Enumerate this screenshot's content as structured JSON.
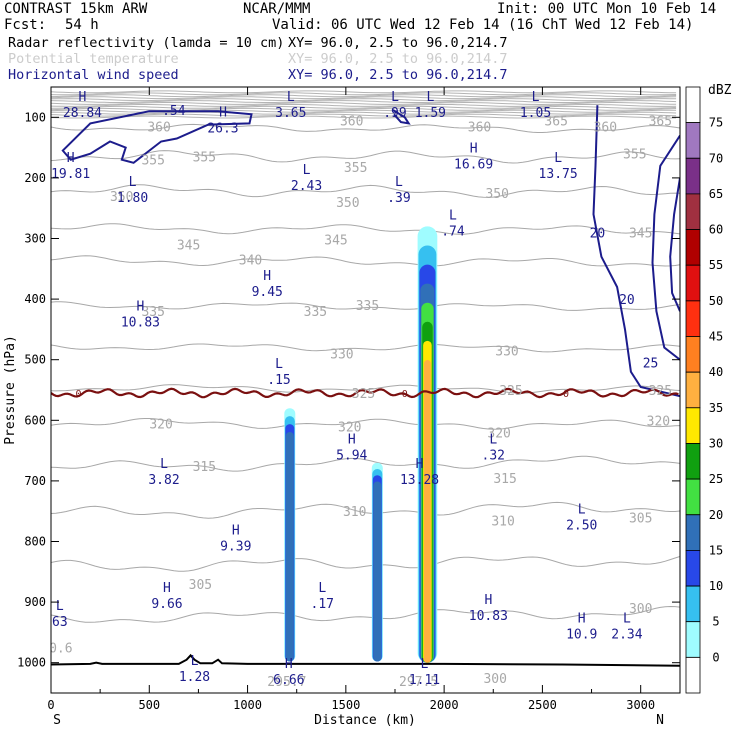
{
  "header": {
    "model": "CONTRAST 15km ARW",
    "org": "NCAR/MMM",
    "init": "Init: 00 UTC Mon 10 Feb 14",
    "fcst_label": "Fcst:",
    "fcst_value": "54 h",
    "valid": "Valid: 06 UTC Wed 12 Feb 14 (16 ChT Wed 12 Feb 14)"
  },
  "fields": [
    {
      "name": "Radar reflectivity (lamda = 10 cm)",
      "xy": "XY=  96.0,  2.5 to  96.0,214.7",
      "color": "#000000"
    },
    {
      "name": "Potential temperature",
      "xy": "XY=  96.0,  2.5 to  96.0,214.7",
      "color": "#cccccc"
    },
    {
      "name": "Horizontal wind speed",
      "xy": "XY=  96.0,  2.5 to  96.0,214.7",
      "color": "#1c1c8c"
    }
  ],
  "colors": {
    "theta": "#a8a8a8",
    "wind": "#1c1c8c",
    "zero_isotherm": "#7a1010",
    "terrain": "#000000",
    "wind_label": "#1c1c8c"
  },
  "chart_data": {
    "type": "heatmap",
    "xlabel": "Distance (km)",
    "ylabel": "Pressure (hPa)",
    "xlim": [
      0,
      3200
    ],
    "ylim": [
      1050,
      50
    ],
    "x_ticks": [
      "0",
      "500",
      "1000",
      "1500",
      "2000",
      "2500",
      "3000"
    ],
    "x_tick_values": [
      0,
      500,
      1000,
      1500,
      2000,
      2500,
      3000
    ],
    "y_ticks": [
      "100",
      "200",
      "300",
      "400",
      "500",
      "600",
      "700",
      "800",
      "900",
      "1000"
    ],
    "y_tick_values": [
      100,
      200,
      300,
      400,
      500,
      600,
      700,
      800,
      900,
      1000
    ],
    "x_ends": {
      "left": "S",
      "right": "N"
    },
    "colorbar": {
      "unit": "dBZ",
      "levels": [
        "0",
        "5",
        "10",
        "15",
        "20",
        "25",
        "30",
        "35",
        "40",
        "45",
        "50",
        "55",
        "60",
        "65",
        "70",
        "75"
      ],
      "colors": [
        "#ffffff",
        "#9ffcff",
        "#36c0f0",
        "#2848e8",
        "#3070b8",
        "#42e042",
        "#10a010",
        "#ffe800",
        "#ffb040",
        "#ff8020",
        "#ff3010",
        "#e01010",
        "#b00000",
        "#a03040",
        "#7a3088",
        "#a078c0",
        "#ffffff"
      ]
    },
    "reflectivity_cells": [
      {
        "x_center": 1215,
        "p_top": 580,
        "p_bottom": 1000,
        "max_dbz": 20
      },
      {
        "x_center": 1660,
        "p_top": 670,
        "p_bottom": 1000,
        "max_dbz": 20
      },
      {
        "x_center": 1915,
        "p_top": 280,
        "p_bottom": 1000,
        "max_dbz": 40
      }
    ],
    "zero_isotherm_label": "0",
    "zero_isotherm_p": 555,
    "theta_labels": [
      {
        "text": "360",
        "x": 550,
        "p": 115
      },
      {
        "text": "360",
        "x": 1530,
        "p": 105
      },
      {
        "text": "360",
        "x": 2180,
        "p": 115
      },
      {
        "text": "365",
        "x": 2570,
        "p": 105
      },
      {
        "text": "365",
        "x": 3100,
        "p": 105
      },
      {
        "text": "360",
        "x": 2820,
        "p": 115
      },
      {
        "text": "355",
        "x": 520,
        "p": 170
      },
      {
        "text": "355",
        "x": 780,
        "p": 165
      },
      {
        "text": "355",
        "x": 1550,
        "p": 182
      },
      {
        "text": "355",
        "x": 2970,
        "p": 160
      },
      {
        "text": "350",
        "x": 360,
        "p": 230
      },
      {
        "text": "350",
        "x": 1510,
        "p": 240
      },
      {
        "text": "350",
        "x": 2270,
        "p": 225
      },
      {
        "text": "345",
        "x": 1450,
        "p": 302
      },
      {
        "text": "345",
        "x": 3000,
        "p": 290
      },
      {
        "text": "345",
        "x": 700,
        "p": 310
      },
      {
        "text": "340",
        "x": 1015,
        "p": 335
      },
      {
        "text": "335",
        "x": 520,
        "p": 420
      },
      {
        "text": "335",
        "x": 1345,
        "p": 420
      },
      {
        "text": "335",
        "x": 1610,
        "p": 410
      },
      {
        "text": "330",
        "x": 1480,
        "p": 490
      },
      {
        "text": "330",
        "x": 2320,
        "p": 485
      },
      {
        "text": "325",
        "x": 1590,
        "p": 555
      },
      {
        "text": "325",
        "x": 2340,
        "p": 550
      },
      {
        "text": "325",
        "x": 3100,
        "p": 550
      },
      {
        "text": "320",
        "x": 560,
        "p": 605
      },
      {
        "text": "320",
        "x": 1520,
        "p": 610
      },
      {
        "text": "320",
        "x": 2280,
        "p": 620
      },
      {
        "text": "320",
        "x": 3090,
        "p": 600
      },
      {
        "text": "315",
        "x": 780,
        "p": 675
      },
      {
        "text": "315",
        "x": 2310,
        "p": 695
      },
      {
        "text": "310",
        "x": 1545,
        "p": 750
      },
      {
        "text": "310",
        "x": 2300,
        "p": 765
      },
      {
        "text": "305",
        "x": 760,
        "p": 870
      },
      {
        "text": "305",
        "x": 3000,
        "p": 760
      },
      {
        "text": "300",
        "x": 3000,
        "p": 910
      },
      {
        "text": "300",
        "x": 2260,
        "p": 1025
      },
      {
        "text": "0.6",
        "x": 50,
        "p": 975
      },
      {
        "text": "295.7",
        "x": 1200,
        "p": 1030
      },
      {
        "text": "297.5",
        "x": 1870,
        "p": 1030
      }
    ],
    "wind_labels": [
      {
        "text": ".54",
        "x": 625,
        "p": 88
      },
      {
        "text": "20",
        "x": 2780,
        "p": 290
      },
      {
        "text": "20",
        "x": 2930,
        "p": 400
      },
      {
        "text": "25",
        "x": 3050,
        "p": 505
      }
    ],
    "extrema": [
      {
        "kind": "H",
        "value": "28.84",
        "x": 160,
        "p": 80
      },
      {
        "kind": "L",
        "value": "3.65",
        "x": 1220,
        "p": 80
      },
      {
        "kind": "L",
        "value": ".99",
        "x": 1750,
        "p": 80
      },
      {
        "kind": "L",
        "value": "1.59",
        "x": 1930,
        "p": 80
      },
      {
        "kind": "L",
        "value": "1.05",
        "x": 2465,
        "p": 80
      },
      {
        "kind": "H",
        "value": "26.3",
        "x": 875,
        "p": 105
      },
      {
        "kind": "H",
        "value": "19.81",
        "x": 100,
        "p": 180
      },
      {
        "kind": "H",
        "value": "16.69",
        "x": 2150,
        "p": 165
      },
      {
        "kind": "L",
        "value": "13.75",
        "x": 2580,
        "p": 180
      },
      {
        "kind": "L",
        "value": "1.80",
        "x": 415,
        "p": 220
      },
      {
        "kind": "L",
        "value": "2.43",
        "x": 1300,
        "p": 200
      },
      {
        "kind": "L",
        "value": ".39",
        "x": 1770,
        "p": 220
      },
      {
        "kind": "L",
        "value": ".74",
        "x": 2045,
        "p": 275
      },
      {
        "kind": "H",
        "value": "9.45",
        "x": 1100,
        "p": 375
      },
      {
        "kind": "H",
        "value": "10.83",
        "x": 455,
        "p": 425
      },
      {
        "kind": "L",
        "value": ".15",
        "x": 1160,
        "p": 520
      },
      {
        "kind": "H",
        "value": "5.94",
        "x": 1530,
        "p": 645
      },
      {
        "kind": "L",
        "value": ".32",
        "x": 2250,
        "p": 645
      },
      {
        "kind": "L",
        "value": "3.82",
        "x": 575,
        "p": 685
      },
      {
        "kind": "H",
        "value": "13.28",
        "x": 1875,
        "p": 685
      },
      {
        "kind": "L",
        "value": "2.50",
        "x": 2700,
        "p": 760
      },
      {
        "kind": "H",
        "value": "9.39",
        "x": 940,
        "p": 795
      },
      {
        "kind": "H",
        "value": "9.66",
        "x": 590,
        "p": 890
      },
      {
        "kind": "L",
        "value": ".17",
        "x": 1380,
        "p": 890
      },
      {
        "kind": "L",
        "value": "63",
        "x": 45,
        "p": 920
      },
      {
        "kind": "H",
        "value": "10.83",
        "x": 2225,
        "p": 910
      },
      {
        "kind": "H",
        "value": "10.9",
        "x": 2700,
        "p": 940
      },
      {
        "kind": "L",
        "value": "2.34",
        "x": 2930,
        "p": 940
      },
      {
        "kind": "L",
        "value": "1.28",
        "x": 730,
        "p": 1010
      },
      {
        "kind": "H",
        "value": "6.66",
        "x": 1210,
        "p": 1015
      },
      {
        "kind": "L",
        "value": "1.11",
        "x": 1900,
        "p": 1015
      }
    ]
  }
}
